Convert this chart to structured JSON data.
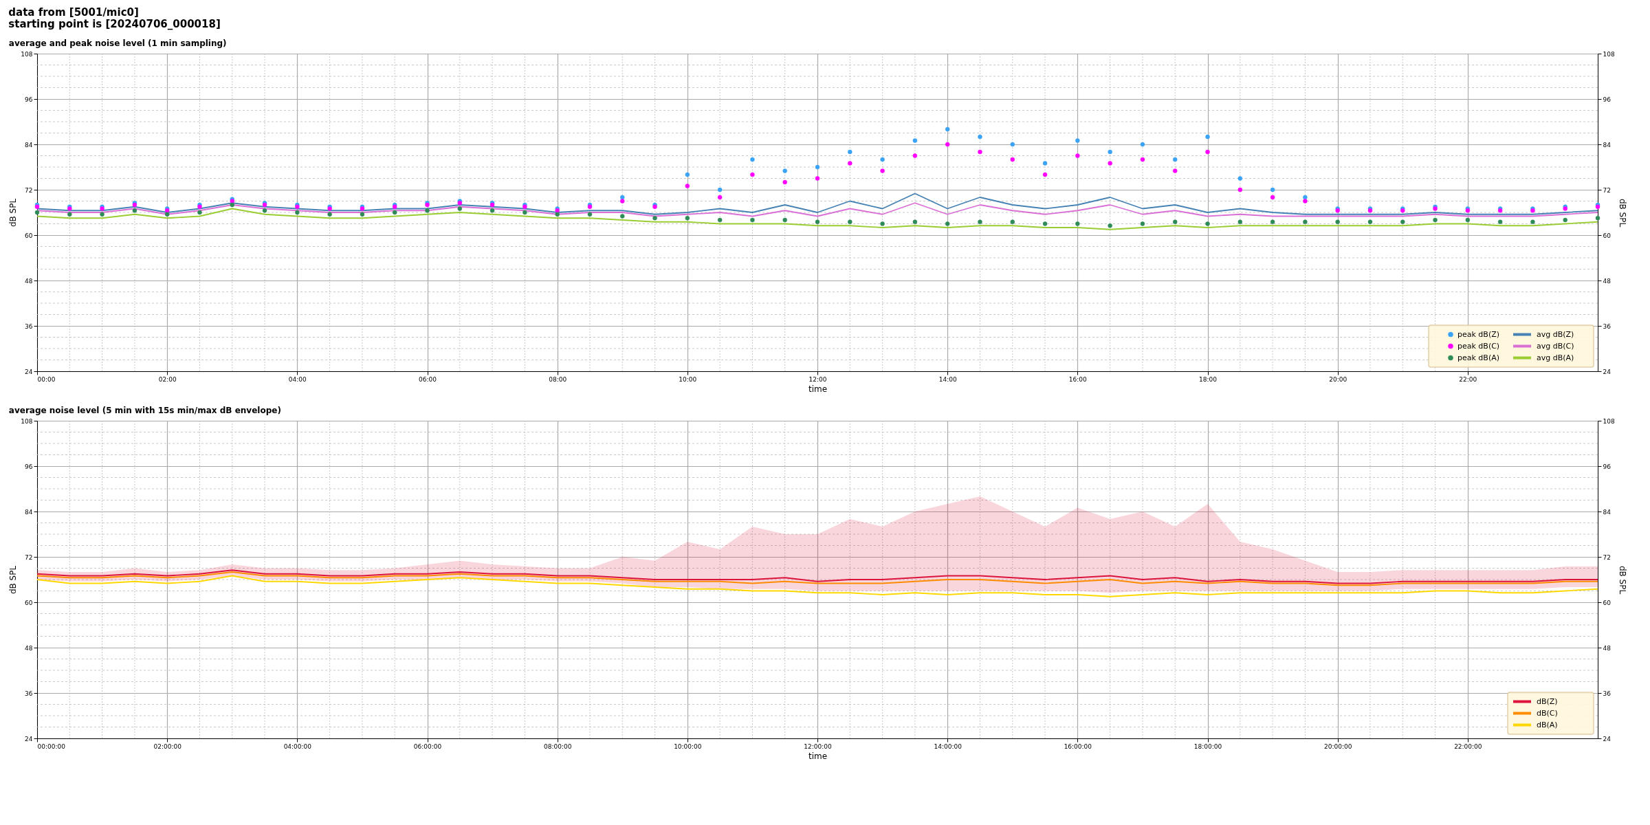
{
  "chart_data": [
    {
      "type": "line",
      "title": "average and peak noise level (1 min sampling)",
      "xlabel": "time",
      "ylabel": "dB SPL",
      "y2label": "dB SPL",
      "annotations": [
        "data from [5001/mic0]",
        "starting point is [20240706_000018]"
      ],
      "x": [
        0,
        0.5,
        1,
        1.5,
        2,
        2.5,
        3,
        3.5,
        4,
        4.5,
        5,
        5.5,
        6,
        6.5,
        7,
        7.5,
        8,
        8.5,
        9,
        9.5,
        10,
        10.5,
        11,
        11.5,
        12,
        12.5,
        13,
        13.5,
        14,
        14.5,
        15,
        15.5,
        16,
        16.5,
        17,
        17.5,
        18,
        18.5,
        19,
        19.5,
        20,
        20.5,
        21,
        21.5,
        22,
        22.5,
        23,
        23.5,
        24
      ],
      "xlim": [
        0,
        24
      ],
      "xticks": [
        {
          "value": 0,
          "label": "00:00"
        },
        {
          "value": 2,
          "label": "02:00"
        },
        {
          "value": 4,
          "label": "04:00"
        },
        {
          "value": 6,
          "label": "06:00"
        },
        {
          "value": 8,
          "label": "08:00"
        },
        {
          "value": 10,
          "label": "10:00"
        },
        {
          "value": 12,
          "label": "12:00"
        },
        {
          "value": 14,
          "label": "14:00"
        },
        {
          "value": 16,
          "label": "16:00"
        },
        {
          "value": 18,
          "label": "18:00"
        },
        {
          "value": 20,
          "label": "20:00"
        },
        {
          "value": 22,
          "label": "22:00"
        }
      ],
      "ylim": [
        24,
        108
      ],
      "yticks": [
        24,
        36,
        48,
        60,
        72,
        84,
        96,
        108
      ],
      "y2lim": [
        24,
        108
      ],
      "y2ticks": [
        24,
        36,
        48,
        60,
        72,
        84,
        96,
        108
      ],
      "grid": true,
      "legend": "bottom right",
      "line_style": "solid",
      "series": [
        {
          "name": "peak dB(Z)",
          "type": "scatter",
          "marker": "circle",
          "color": "#3ba3f5",
          "values": [
            68,
            67.5,
            67.5,
            68.5,
            67,
            68,
            69.5,
            68.5,
            68,
            67.5,
            67.5,
            68,
            68.5,
            69,
            68.5,
            68,
            67,
            68,
            70,
            68,
            76,
            72,
            80,
            77,
            78,
            82,
            80,
            85,
            88,
            86,
            84,
            79,
            85,
            82,
            84,
            80,
            86,
            75,
            72,
            70,
            67,
            67,
            67,
            67.5,
            67,
            67,
            67,
            67.5,
            68
          ]
        },
        {
          "name": "peak dB(C)",
          "type": "scatter",
          "marker": "circle",
          "color": "#ff00ff",
          "values": [
            67.5,
            67,
            67,
            68,
            66.5,
            67.5,
            69,
            68,
            67.5,
            67,
            67,
            67.5,
            68,
            68.5,
            68,
            67.5,
            66.5,
            67.5,
            69,
            67.5,
            73,
            70,
            76,
            74,
            75,
            79,
            77,
            81,
            84,
            82,
            80,
            76,
            81,
            79,
            80,
            77,
            82,
            72,
            70,
            69,
            66.5,
            66.5,
            66.5,
            67,
            66.5,
            66.5,
            66.5,
            67,
            67.5
          ]
        },
        {
          "name": "peak dB(A)",
          "type": "scatter",
          "marker": "circle",
          "color": "#2e8b57",
          "values": [
            66,
            65.5,
            65.5,
            66.5,
            65.5,
            66,
            68,
            66.5,
            66,
            65.5,
            65.5,
            66,
            66.5,
            67,
            66.5,
            66,
            65.5,
            65.5,
            65,
            64.5,
            64.5,
            64,
            64,
            64,
            63.5,
            63.5,
            63,
            63.5,
            63,
            63.5,
            63.5,
            63,
            63,
            62.5,
            63,
            63.5,
            63,
            63.5,
            63.5,
            63.5,
            63.5,
            63.5,
            63.5,
            64,
            64,
            63.5,
            63.5,
            64,
            64.5
          ]
        },
        {
          "name": "avg dB(Z)",
          "type": "line",
          "color": "#4682b4",
          "values": [
            67,
            66.5,
            66.5,
            67.5,
            66,
            67,
            68.5,
            67.5,
            67,
            66.5,
            66.5,
            67,
            67,
            68,
            67.5,
            67,
            66,
            66.5,
            66.5,
            65.5,
            66,
            67,
            66,
            68,
            66,
            69,
            67,
            71,
            67,
            70,
            68,
            67,
            68,
            70,
            67,
            68,
            66,
            67,
            66,
            65.5,
            65.5,
            65.5,
            65.5,
            66,
            65.5,
            65.5,
            65.5,
            66,
            66.5
          ]
        },
        {
          "name": "avg dB(C)",
          "type": "line",
          "color": "#da70d6",
          "values": [
            66.5,
            66,
            66,
            67,
            65.5,
            66.5,
            68,
            67,
            66.5,
            66,
            66,
            66.5,
            66.5,
            67.5,
            67,
            66.5,
            65.5,
            66,
            66,
            65,
            65.5,
            66,
            65,
            66.5,
            65,
            67,
            65.5,
            68.5,
            65.5,
            68,
            66.5,
            65.5,
            66.5,
            68,
            65.5,
            66.5,
            65,
            65.5,
            65,
            65,
            65,
            65,
            65,
            65.5,
            65,
            65,
            65,
            65.5,
            66
          ]
        },
        {
          "name": "avg dB(A)",
          "type": "line",
          "color": "#9acd32",
          "values": [
            65,
            64.5,
            64.5,
            65.5,
            64.5,
            65,
            67,
            65.5,
            65,
            64.5,
            64.5,
            65,
            65.5,
            66,
            65.5,
            65,
            64.5,
            64.5,
            64,
            63.5,
            63.5,
            63,
            63,
            63,
            62.5,
            62.5,
            62,
            62.5,
            62,
            62.5,
            62.5,
            62,
            62,
            61.5,
            62,
            62.5,
            62,
            62.5,
            62.5,
            62.5,
            62.5,
            62.5,
            62.5,
            63,
            63,
            62.5,
            62.5,
            63,
            63.5
          ]
        }
      ]
    },
    {
      "type": "line",
      "title": "average noise level (5 min with 15s min/max dB envelope)",
      "xlabel": "time",
      "ylabel": "dB SPL",
      "y2label": "dB SPL",
      "x": [
        0,
        0.5,
        1,
        1.5,
        2,
        2.5,
        3,
        3.5,
        4,
        4.5,
        5,
        5.5,
        6,
        6.5,
        7,
        7.5,
        8,
        8.5,
        9,
        9.5,
        10,
        10.5,
        11,
        11.5,
        12,
        12.5,
        13,
        13.5,
        14,
        14.5,
        15,
        15.5,
        16,
        16.5,
        17,
        17.5,
        18,
        18.5,
        19,
        19.5,
        20,
        20.5,
        21,
        21.5,
        22,
        22.5,
        23,
        23.5,
        24
      ],
      "xlim": [
        0,
        24
      ],
      "xticks": [
        {
          "value": 0,
          "label": "00:00:00"
        },
        {
          "value": 2,
          "label": "02:00:00"
        },
        {
          "value": 4,
          "label": "04:00:00"
        },
        {
          "value": 6,
          "label": "06:00:00"
        },
        {
          "value": 8,
          "label": "08:00:00"
        },
        {
          "value": 10,
          "label": "10:00:00"
        },
        {
          "value": 12,
          "label": "12:00:00"
        },
        {
          "value": 14,
          "label": "14:00:00"
        },
        {
          "value": 16,
          "label": "16:00:00"
        },
        {
          "value": 18,
          "label": "18:00:00"
        },
        {
          "value": 20,
          "label": "20:00:00"
        },
        {
          "value": 22,
          "label": "22:00:00"
        }
      ],
      "ylim": [
        24,
        108
      ],
      "yticks": [
        24,
        36,
        48,
        60,
        72,
        84,
        96,
        108
      ],
      "y2lim": [
        24,
        108
      ],
      "y2ticks": [
        24,
        36,
        48,
        60,
        72,
        84,
        96,
        108
      ],
      "grid": true,
      "legend": "bottom right",
      "line_style": "solid",
      "series": [
        {
          "name": "dB(Z)",
          "type": "line",
          "color": "#dc143c",
          "values": [
            67.5,
            67,
            67,
            67.5,
            67,
            67.5,
            68.5,
            67.5,
            67.5,
            67,
            67,
            67.5,
            67.5,
            68,
            67.5,
            67.5,
            67,
            67,
            66.5,
            66,
            66,
            66,
            66,
            66.5,
            65.5,
            66,
            66,
            66.5,
            67,
            67,
            66.5,
            66,
            66.5,
            67,
            66,
            66.5,
            65.5,
            66,
            65.5,
            65.5,
            65,
            65,
            65.5,
            65.5,
            65.5,
            65.5,
            65.5,
            66,
            66
          ],
          "upper": [
            68.5,
            68,
            68,
            69,
            68,
            68.5,
            70,
            69,
            69,
            68.5,
            68.5,
            69,
            70,
            71,
            70,
            69.5,
            69,
            69,
            72,
            71,
            76,
            74,
            80,
            78,
            78,
            82,
            80,
            84,
            86,
            88,
            84,
            80,
            85,
            82,
            84,
            80,
            86,
            76,
            74,
            71,
            68,
            68,
            68.5,
            68.5,
            68.5,
            68.5,
            68.5,
            69.5,
            69.5
          ],
          "lower": [
            66,
            65.5,
            65.5,
            66,
            65.5,
            66,
            67,
            66,
            66,
            65.5,
            65.5,
            66,
            66,
            66.5,
            66,
            66,
            65.5,
            65.5,
            65,
            64,
            64,
            63.5,
            63.5,
            63.5,
            63,
            63,
            63,
            63,
            63,
            63,
            63,
            63,
            63,
            62.5,
            63,
            63,
            63,
            63,
            63,
            63,
            63,
            63,
            63.5,
            63.5,
            63.5,
            63.5,
            63.5,
            64,
            64
          ]
        },
        {
          "name": "dB(C)",
          "type": "line",
          "color": "#ff8c00",
          "values": [
            67,
            66.5,
            66.5,
            67,
            66.5,
            67,
            68,
            67,
            67,
            66.5,
            66.5,
            67,
            67,
            67.5,
            67,
            67,
            66.5,
            66.5,
            66,
            65.5,
            65.5,
            65.5,
            65,
            65.5,
            65,
            65,
            65,
            65.5,
            66,
            66,
            65.5,
            65,
            65.5,
            66,
            65,
            65.5,
            65,
            65.5,
            65,
            65,
            64.5,
            64.5,
            65,
            65,
            65,
            65,
            65,
            65.5,
            65.5
          ]
        },
        {
          "name": "dB(A)",
          "type": "line",
          "color": "#ffd700",
          "values": [
            66,
            65,
            65,
            65.5,
            65,
            65.5,
            67,
            65.5,
            65.5,
            65,
            65,
            65.5,
            66,
            66.5,
            66,
            65.5,
            65,
            65,
            64.5,
            64,
            63.5,
            63.5,
            63,
            63,
            62.5,
            62.5,
            62,
            62.5,
            62,
            62.5,
            62.5,
            62,
            62,
            61.5,
            62,
            62.5,
            62,
            62.5,
            62.5,
            62.5,
            62.5,
            62.5,
            62.5,
            63,
            63,
            62.5,
            62.5,
            63,
            63.5
          ]
        }
      ]
    }
  ]
}
